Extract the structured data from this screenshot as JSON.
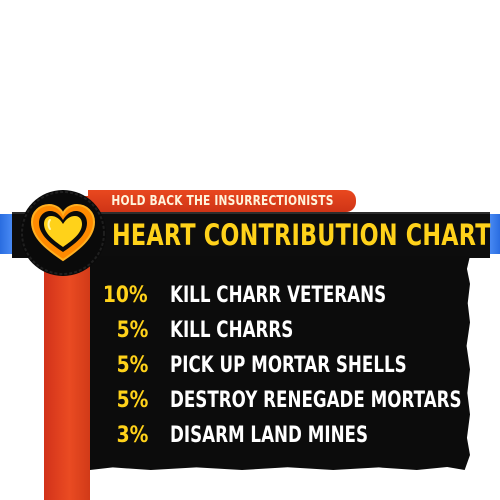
{
  "card": {
    "subtitle": "HOLD BACK THE INSURRECTIONISTS",
    "title": "HEART CONTRIBUTION CHART",
    "icon": "heart-icon",
    "colors": {
      "title_text": "#ffd21a",
      "task_text": "#ffffff",
      "panel": "#0c0c0c",
      "accent_red": "#e9481f",
      "accent_blue": "#2a6de0",
      "heart_outer": "#ff8a00",
      "heart_inner": "#ffd21a"
    }
  },
  "contributions": [
    {
      "percent": "10%",
      "task": "KILL CHARR VETERANS"
    },
    {
      "percent": "5%",
      "task": "KILL CHARRS"
    },
    {
      "percent": "5%",
      "task": "PICK UP MORTAR SHELLS"
    },
    {
      "percent": "5%",
      "task": "DESTROY RENEGADE MORTARS"
    },
    {
      "percent": "3%",
      "task": "DISARM LAND MINES"
    }
  ]
}
